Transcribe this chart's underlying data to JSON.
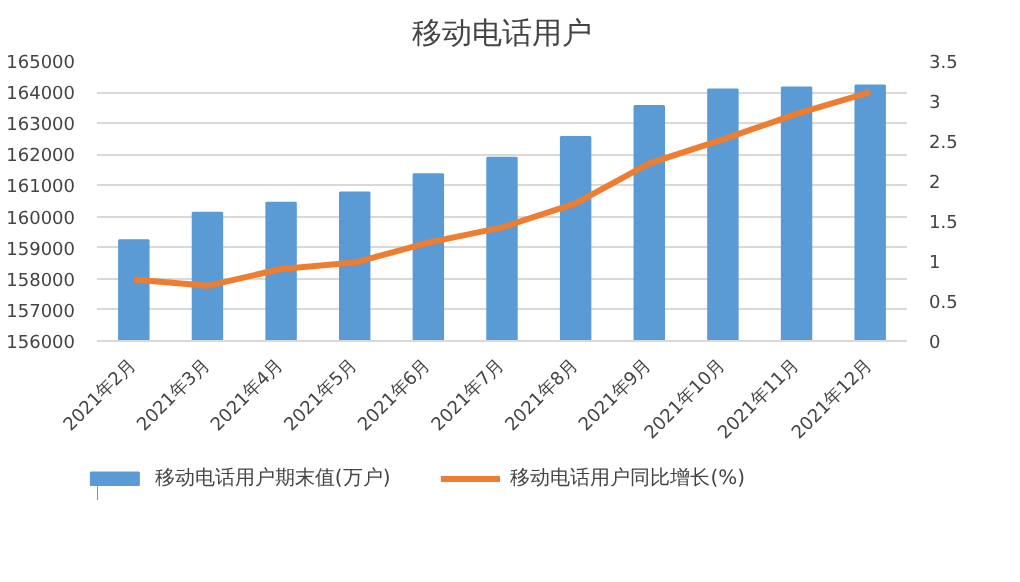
{
  "chart_data": {
    "type": "bar",
    "title": "移动电话用户",
    "categories": [
      "2021年2月",
      "2021年3月",
      "2021年4月",
      "2021年5月",
      "2021年6月",
      "2021年7月",
      "2021年8月",
      "2021年9月",
      "2021年10月",
      "2021年11月",
      "2021年12月"
    ],
    "series": [
      {
        "name": "移动电话用户期末值(万户)",
        "color": "#5b9bd5",
        "values": [
          159240,
          160120,
          160440,
          160770,
          161360,
          161890,
          162560,
          163550,
          164080,
          164150,
          164210
        ]
      },
      {
        "name": "移动电话用户同比增长(%)",
        "color": "#ed7d31",
        "type": "line",
        "axis": "y2",
        "values": [
          0.77,
          0.69,
          0.9,
          0.98,
          1.23,
          1.42,
          1.72,
          2.22,
          2.52,
          2.84,
          3.11
        ]
      }
    ],
    "ylim": [
      156000,
      165000
    ],
    "yticks": [
      156000,
      157000,
      158000,
      159000,
      160000,
      161000,
      162000,
      163000,
      164000,
      165000
    ],
    "y2lim": [
      0,
      3.5
    ],
    "y2ticks": [
      0,
      0.5,
      1,
      1.5,
      2,
      2.5,
      3,
      3.5
    ],
    "grid": "y",
    "legend": "bottom"
  }
}
